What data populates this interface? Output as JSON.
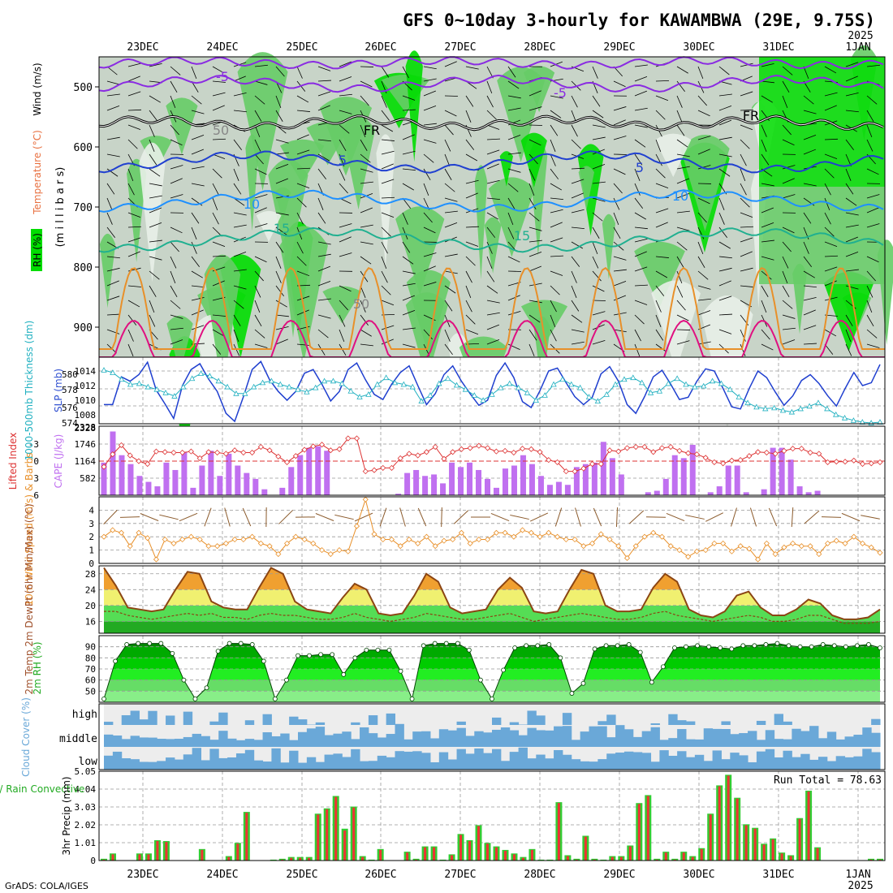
{
  "header": {
    "title": "GFS 0~10day 3-hourly for KAWAMBWA (29E, 9.75S)",
    "year_top": "2025",
    "year_bottom": "2025",
    "credit": "GrADS: COLA/IGES"
  },
  "colors": {
    "rh_green": "#00dd00",
    "rh_mid": "#66cc66",
    "rh_grey": "#c8d4c8",
    "temp_purple": "#8a2be2",
    "temp_blue": "#2040d0",
    "temp_cyan": "#1e90ff",
    "temp_teal": "#20b090",
    "temp_orange": "#e8902a",
    "temp_magenta": "#e01080",
    "slp_blue": "#1f3fcf",
    "thick_cyan": "#20b0c0",
    "li_red": "#dd3333",
    "cape_purple": "#c070f0",
    "wind_orange": "#e8902a",
    "cloud_blue": "#6aa8d8",
    "cloud_grey": "#dcdcdc",
    "precip_green": "#33cc33",
    "precip_red": "#ee3333"
  },
  "chart_data": [
    {
      "panel": "upper-air",
      "type": "heatmap",
      "ylabel_parts": [
        "RH (%)",
        "Temperature (°C)",
        "Wind (m/s)"
      ],
      "ylabel_units": "(m i l l i b a r s)",
      "yticks": [
        500,
        600,
        700,
        800,
        900
      ],
      "ylim": [
        450,
        950
      ],
      "date_labels": [
        "23DEC",
        "24DEC",
        "25DEC",
        "26DEC",
        "27DEC",
        "28DEC",
        "29DEC",
        "30DEC",
        "31DEC",
        "1JAN"
      ],
      "contour_labels": [
        {
          "text": "-5",
          "color": "temp_purple"
        },
        {
          "text": "-5",
          "color": "temp_purple"
        },
        {
          "text": "FR",
          "color": "#000000"
        },
        {
          "text": "FR",
          "color": "#000000"
        },
        {
          "text": "5",
          "color": "temp_blue"
        },
        {
          "text": "5",
          "color": "temp_blue"
        },
        {
          "text": "10",
          "color": "temp_cyan"
        },
        {
          "text": "10",
          "color": "temp_cyan"
        },
        {
          "text": "15",
          "color": "temp_teal"
        },
        {
          "text": "15",
          "color": "temp_teal"
        },
        {
          "text": "50",
          "color": "#888888"
        },
        {
          "text": "50",
          "color": "#888888"
        }
      ]
    },
    {
      "panel": "slp-thickness",
      "type": "line",
      "ylabel_left": "1000-500mb Thickness (dm)",
      "ylabel_right": "SLP (mb)",
      "yticks_left": [
        574,
        576,
        578,
        580
      ],
      "yticks_right": [
        1008,
        1010,
        1012,
        1014
      ],
      "series": [
        {
          "name": "SLP (mb)",
          "values": [
            1009.4,
            1009.4,
            1013.2,
            1012.6,
            1013.5,
            1015.2,
            1011.4,
            1009.5,
            1007.5,
            1012,
            1014.2,
            1015,
            1012.9,
            1011.2,
            1008.2,
            1007.1,
            1010.5,
            1014.2,
            1015.3,
            1012.8,
            1011.2,
            1010,
            1011.2,
            1013.7,
            1014.2,
            1012.2,
            1009.9,
            1011.2,
            1014.2,
            1015.1,
            1012.8,
            1010.8,
            1010.1,
            1012.2,
            1013.8,
            1014.7,
            1012,
            1009.4,
            1010.9,
            1013.5,
            1014.7,
            1012.6,
            1010.9,
            1009.3,
            1010,
            1013.4,
            1015.1,
            1013.1,
            1009.8,
            1009,
            1011.3,
            1014,
            1014.4,
            1012.4,
            1010.5,
            1009.4,
            1010.4,
            1013.6,
            1014.6,
            1012.6,
            1009.4,
            1008.2,
            1010.5,
            1013.2,
            1014.1,
            1012.2,
            1010.1,
            1010.4,
            1012.6,
            1014.3,
            1014,
            1011.6,
            1009.1,
            1008.8,
            1011.6,
            1014,
            1013.1,
            1011.1,
            1009.3,
            1010.6,
            1012.7,
            1013.5,
            1012.3,
            1010.6,
            1009.2,
            1011.6,
            1013.8,
            1012,
            1012.4,
            1014.9
          ]
        },
        {
          "name": "Thickness (dm)",
          "values": [
            580.3,
            580,
            579.2,
            578.6,
            578.7,
            578.3,
            578,
            577.6,
            577.2,
            578.3,
            579.3,
            579.9,
            579.6,
            579,
            578.3,
            577.5,
            577.5,
            578.3,
            578.8,
            579,
            578.6,
            578.3,
            578,
            577.7,
            578.2,
            579,
            579,
            578.7,
            577.8,
            577.1,
            577.4,
            578.6,
            579.4,
            578.8,
            578.6,
            578.3,
            576.6,
            577.3,
            578.7,
            579.3,
            578.5,
            578,
            577.3,
            576.7,
            577.4,
            578.2,
            578.7,
            578.2,
            577.6,
            576.7,
            577.3,
            578.6,
            579.2,
            578.6,
            578.2,
            577.1,
            576.6,
            577.4,
            578.6,
            579.2,
            579.4,
            578.8,
            577.6,
            577.8,
            578.7,
            579.3,
            578.6,
            578.3,
            578.4,
            579,
            578.7,
            578,
            577.1,
            576.4,
            575.9,
            575.7,
            575.8,
            575.5,
            575.3,
            575.7,
            576,
            576.4,
            575.7,
            575,
            574.6,
            574.3,
            574.1,
            574,
            574.1
          ]
        }
      ]
    },
    {
      "panel": "li-cape",
      "type": "bar",
      "ylabel_left": "Lifted Index",
      "ylabel_right": "CAPE (J/kg)",
      "yticks_left": [
        "-3",
        "0",
        "3",
        "6"
      ],
      "yticks_right": [
        "582",
        "1164",
        "1746",
        "2328"
      ],
      "top_label": "2328",
      "series": [
        {
          "name": "CAPE (J/kg)",
          "values": [
            1100,
            2150,
            1350,
            1050,
            650,
            450,
            300,
            1100,
            850,
            1450,
            250,
            1000,
            1500,
            650,
            1400,
            1000,
            750,
            550,
            200,
            0,
            250,
            950,
            1350,
            1600,
            1650,
            1500,
            0,
            0,
            0,
            0,
            0,
            0,
            0,
            50,
            750,
            850,
            650,
            700,
            400,
            1100,
            950,
            1100,
            850,
            550,
            250,
            900,
            1000,
            1350,
            1050,
            650,
            350,
            450,
            350,
            950,
            1050,
            1100,
            1800,
            1250,
            700,
            0,
            0,
            100,
            150,
            550,
            1350,
            1250,
            1700,
            0,
            100,
            300,
            1000,
            1000,
            100,
            0,
            200,
            1600,
            1600,
            1200,
            300,
            100,
            150,
            0,
            0,
            0,
            0,
            0,
            0,
            0
          ]
        },
        {
          "name": "Lifted Index",
          "values": [
            1,
            -1.2,
            -2.8,
            -1,
            0,
            0.5,
            -1.7,
            -1.6,
            -1.5,
            -1.5,
            -1.7,
            -0.5,
            -1.6,
            -1.5,
            -1.3,
            -1.9,
            -1.5,
            -1.5,
            -2.5,
            -1.9,
            -0.8,
            0.2,
            -0.9,
            -2,
            -2.6,
            -2.9,
            -1.9,
            -2.1,
            -4,
            -4,
            1.8,
            1.6,
            1.2,
            1.2,
            -0.5,
            -1.3,
            -1,
            -1.6,
            -2.5,
            -0.4,
            -1.6,
            -2.1,
            -2.3,
            -2.7,
            -2.3,
            -1.7,
            -1.8,
            -1.5,
            -2.2,
            -2.1,
            -1.6,
            -0.2,
            0.2,
            1.8,
            1.8,
            1.3,
            0.5,
            0.5,
            -1.9,
            -1.7,
            -2.3,
            -2.5,
            -2.5,
            -1.6,
            -2.3,
            -2.5,
            -1.8,
            -1.4,
            -1.2,
            -0.6,
            0.2,
            0.4,
            -0.1,
            -0.2,
            -0.9,
            -1.6,
            -1.5,
            -1.3,
            -1.8,
            -2.2,
            -2.2,
            -1.5,
            -1.3,
            0.2,
            0.1,
            0.1,
            -0.1,
            0.5,
            0.4,
            0.2
          ]
        }
      ]
    },
    {
      "panel": "10m-wind",
      "type": "line",
      "ylabel": "10m Wind Speed (m/s) & Barbs",
      "yticks": [
        "0",
        "1",
        "2",
        "3",
        "4"
      ],
      "ylim": [
        0,
        5
      ],
      "series": [
        {
          "name": "10m Wind Speed",
          "values": [
            2,
            2.5,
            2.3,
            1.3,
            2.3,
            1.9,
            0.3,
            1.8,
            1.5,
            1.8,
            2,
            1.8,
            1.3,
            1.3,
            1.5,
            1.8,
            1.8,
            2,
            1.5,
            1.3,
            0.7,
            1.5,
            2,
            1.8,
            1.5,
            1,
            0.7,
            1,
            0.9,
            2.8,
            4.8,
            2.2,
            1.8,
            1.8,
            1.3,
            1.8,
            1.5,
            2,
            1.3,
            1.7,
            1.8,
            2.3,
            1.5,
            1.8,
            1.8,
            2.3,
            2.3,
            2,
            2.5,
            2.3,
            2,
            2.3,
            2,
            1.8,
            1.8,
            1.3,
            1.5,
            2.2,
            1.8,
            1.3,
            0.4,
            1.3,
            2,
            2.3,
            2,
            1.3,
            1,
            0.5,
            0.9,
            1,
            1.5,
            1.5,
            0.9,
            1.3,
            1.1,
            0.3,
            1.5,
            0.7,
            1.2,
            1.5,
            1.3,
            1.3,
            0.7,
            1.5,
            1.7,
            1.5,
            2,
            1.5,
            1.2,
            0.8
          ]
        }
      ]
    },
    {
      "panel": "2m-temp",
      "type": "area",
      "ylabel": "2m Temp 2m DewPt (6hr Min/Max) (°C)",
      "yticks": [
        "16",
        "20",
        "24",
        "28"
      ],
      "ylim": [
        13,
        30
      ],
      "series": [
        {
          "name": "2m Temp",
          "values": [
            29.5,
            25,
            19.5,
            19,
            18.5,
            19,
            24,
            28.5,
            28,
            21,
            19.5,
            19,
            19,
            24.5,
            29.5,
            28,
            21,
            19,
            18.5,
            18,
            22,
            25.5,
            24,
            18,
            17.5,
            18,
            22.5,
            28,
            26,
            19.5,
            18,
            18.5,
            19,
            24,
            27,
            24.5,
            18.5,
            18,
            18.5,
            24,
            29,
            28,
            20,
            18.5,
            18.5,
            19,
            24.5,
            28,
            26,
            19,
            17.5,
            17,
            18.5,
            22.5,
            23.5,
            19.5,
            17.5,
            17.5,
            19,
            21.5,
            20.5,
            17.5,
            16.5,
            16.5,
            17,
            19
          ]
        },
        {
          "name": "2m DewPt",
          "values": [
            18.5,
            18.5,
            17.5,
            17,
            16.5,
            17,
            17.5,
            18,
            17.5,
            18,
            17,
            17,
            16.5,
            17.5,
            18,
            17.5,
            17.5,
            17,
            16.5,
            16.5,
            17,
            18,
            17,
            16.5,
            16,
            16.5,
            17,
            18,
            17.5,
            17,
            16.5,
            16.5,
            17,
            17.5,
            18,
            17,
            16,
            16.5,
            17,
            17.5,
            18,
            17.5,
            17,
            16.5,
            16.5,
            17,
            18,
            18.5,
            17.5,
            17,
            16.5,
            16,
            16.5,
            17,
            17.5,
            17,
            16,
            16,
            16.5,
            17.5,
            17.5,
            16.5,
            15.5,
            15.5,
            15.5,
            16
          ]
        }
      ]
    },
    {
      "panel": "2m-rh",
      "type": "area",
      "ylabel": "2m RH (%)",
      "yticks": [
        "50",
        "60",
        "70",
        "80",
        "90"
      ],
      "ylim": [
        40,
        100
      ],
      "series": [
        {
          "name": "2m RH",
          "values": [
            43,
            77,
            92,
            93,
            93,
            93,
            84,
            60,
            43,
            53,
            86,
            93,
            93,
            92,
            77,
            43,
            60,
            82,
            82,
            83,
            83,
            65,
            80,
            87,
            87,
            87,
            68,
            43,
            91,
            93,
            93,
            93,
            87,
            60,
            43,
            69,
            89,
            91,
            91,
            92,
            80,
            48,
            57,
            88,
            91,
            91,
            92,
            85,
            58,
            72,
            89,
            90,
            91,
            90,
            89,
            88,
            91,
            91,
            92,
            93,
            91,
            90,
            90,
            92,
            91,
            90,
            91,
            92,
            89
          ]
        }
      ]
    },
    {
      "panel": "cloud-cover",
      "type": "heatmap",
      "ylabel": "Cloud Cover (%)",
      "layers": [
        "high",
        "middle",
        "low"
      ]
    },
    {
      "panel": "precip",
      "type": "bar",
      "ylabel_left": "Total / Rain Convective",
      "ylabel_units": "3hr Precip (mm)",
      "yticks": [
        "0",
        "1.01",
        "2.02",
        "3.03",
        "4.04",
        "5.05"
      ],
      "ylim": [
        0,
        5.05
      ],
      "run_total_label": "Run Total = 78.63",
      "series": [
        {
          "name": "Total",
          "values": [
            0.1,
            0.4,
            0,
            0,
            0.4,
            0.4,
            1.15,
            1.1,
            0,
            0,
            0,
            0.65,
            0,
            0,
            0.25,
            1.0,
            2.75,
            0,
            0,
            0.05,
            0.1,
            0.2,
            0.2,
            0.2,
            2.65,
            2.95,
            3.65,
            1.8,
            3.05,
            0.25,
            0.05,
            0.65,
            0,
            0,
            0.5,
            0.1,
            0.8,
            0.8,
            0.05,
            0.35,
            1.5,
            1.15,
            2.0,
            1.0,
            0.8,
            0.6,
            0.4,
            0.2,
            0.65,
            0.05,
            0.05,
            3.3,
            0.3,
            0.1,
            1.4,
            0.1,
            0.05,
            0.25,
            0.25,
            0.85,
            3.25,
            3.7,
            0.1,
            0.5,
            0.1,
            0.5,
            0.25,
            0.7,
            2.65,
            4.25,
            4.85,
            3.55,
            2.05,
            1.85,
            0.95,
            1.25,
            0.45,
            0.3,
            2.4,
            3.95,
            0.75,
            0,
            0,
            0,
            0,
            0,
            0.1,
            0.1
          ]
        },
        {
          "name": "Convective",
          "values": [
            0.05,
            0.35,
            0,
            0,
            0.35,
            0.35,
            1.1,
            1.05,
            0,
            0,
            0,
            0.6,
            0,
            0,
            0.2,
            0.95,
            2.7,
            0,
            0,
            0,
            0.05,
            0.15,
            0.15,
            0.15,
            2.6,
            2.9,
            3.6,
            1.7,
            3.0,
            0.2,
            0,
            0.6,
            0,
            0,
            0.45,
            0.05,
            0.75,
            0.75,
            0,
            0.3,
            1.45,
            1.1,
            1.95,
            0.95,
            0.75,
            0.55,
            0.35,
            0.15,
            0.6,
            0,
            0,
            3.25,
            0.25,
            0.05,
            1.35,
            0.05,
            0,
            0.2,
            0.2,
            0.8,
            3.2,
            3.65,
            0.05,
            0.45,
            0.05,
            0.45,
            0.2,
            0.65,
            2.6,
            4.2,
            4.8,
            3.5,
            2.0,
            1.8,
            0.9,
            1.2,
            0.4,
            0.25,
            2.35,
            3.9,
            0.7,
            0,
            0,
            0,
            0,
            0,
            0.05,
            0.05
          ]
        }
      ]
    }
  ]
}
